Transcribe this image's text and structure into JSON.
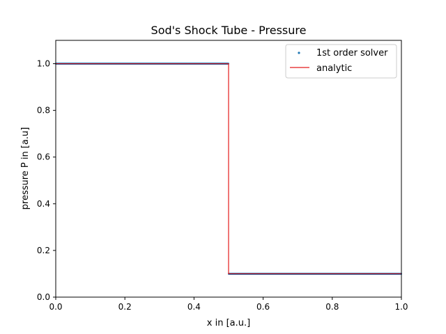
{
  "chart_data": {
    "type": "scatter",
    "title": "Sod's Shock Tube - Pressure",
    "xlabel": "x in [a.u.]",
    "ylabel": "pressure P in [a.u]",
    "xlim": [
      0.0,
      1.0
    ],
    "ylim": [
      0.0,
      1.1
    ],
    "xticks": [
      "0.0",
      "0.2",
      "0.4",
      "0.6",
      "0.8",
      "1.0"
    ],
    "yticks": [
      "0.0",
      "0.2",
      "0.4",
      "0.6",
      "0.8",
      "1.0"
    ],
    "legend_position": "upper right",
    "grid": false,
    "series": [
      {
        "name": "1st order solver",
        "kind": "scatter",
        "color": "#1f77b4",
        "segments": [
          {
            "x_start": 0.0,
            "x_end": 0.5,
            "y": 1.0
          },
          {
            "x_start": 0.5,
            "x_end": 1.0,
            "y": 0.1
          }
        ],
        "points_per_segment": 250
      },
      {
        "name": "analytic",
        "kind": "line",
        "color": "#e41a1c",
        "x": [
          0.0,
          0.5,
          0.5,
          1.0
        ],
        "y": [
          1.0,
          1.0,
          0.1,
          0.1
        ]
      }
    ]
  }
}
